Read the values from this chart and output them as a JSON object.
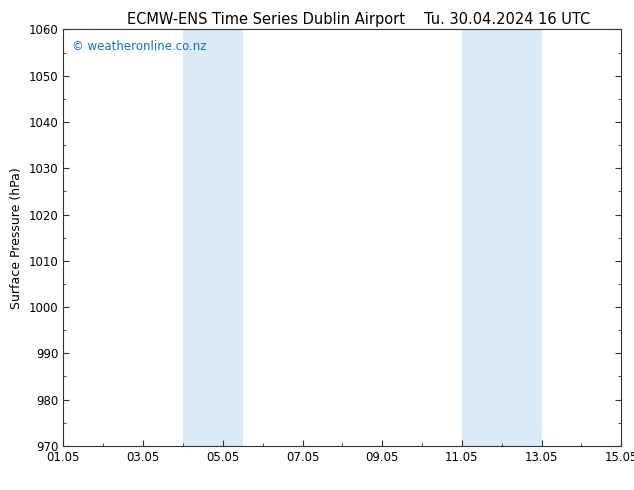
{
  "title_left": "ECMW-ENS Time Series Dublin Airport",
  "title_right": "Tu. 30.04.2024 16 UTC",
  "ylabel": "Surface Pressure (hPa)",
  "ylim": [
    970,
    1060
  ],
  "yticks": [
    970,
    980,
    990,
    1000,
    1010,
    1020,
    1030,
    1040,
    1050,
    1060
  ],
  "xlim_start": 0,
  "xlim_end": 14,
  "xtick_positions": [
    0,
    2,
    4,
    6,
    8,
    10,
    12,
    14
  ],
  "xtick_labels": [
    "01.05",
    "03.05",
    "05.05",
    "07.05",
    "09.05",
    "11.05",
    "13.05",
    "15.05"
  ],
  "shaded_regions": [
    {
      "xmin": 3.0,
      "xmax": 4.5
    },
    {
      "xmin": 10.0,
      "xmax": 12.0
    }
  ],
  "shaded_color": "#daeaf7",
  "watermark": "© weatheronline.co.nz",
  "watermark_color": "#1a6dcc",
  "background_color": "#ffffff",
  "axes_edge_color": "#333333",
  "title_fontsize": 10.5,
  "label_fontsize": 9,
  "tick_fontsize": 8.5,
  "watermark_fontsize": 8.5
}
